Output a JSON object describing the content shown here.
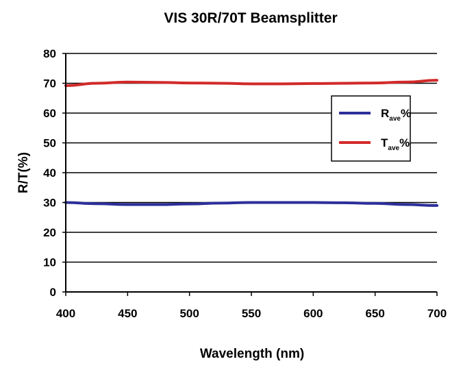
{
  "chart_data": {
    "type": "line",
    "title": "VIS 30R/70T Beamsplitter",
    "xlabel": "Wavelength (nm)",
    "ylabel": "R/T(%)",
    "xlim": [
      400,
      700
    ],
    "ylim": [
      0,
      80
    ],
    "x_ticks": [
      400,
      450,
      500,
      550,
      600,
      650,
      700
    ],
    "y_ticks": [
      0,
      10,
      20,
      30,
      40,
      50,
      60,
      70,
      80
    ],
    "grid": "horizontal",
    "legend_position": "right",
    "series": [
      {
        "name": "R",
        "subscript": "ave",
        "suffix": "%",
        "color": "#2e2f9a",
        "x": [
          400,
          425,
          450,
          475,
          500,
          525,
          550,
          575,
          600,
          625,
          650,
          675,
          700
        ],
        "y": [
          30.0,
          29.6,
          29.3,
          29.3,
          29.5,
          29.8,
          30.0,
          30.0,
          30.0,
          29.9,
          29.7,
          29.3,
          29.0
        ]
      },
      {
        "name": "T",
        "subscript": "ave",
        "suffix": "%",
        "color": "#d22a2a",
        "x": [
          400,
          425,
          450,
          475,
          500,
          525,
          550,
          575,
          600,
          625,
          650,
          675,
          700
        ],
        "y": [
          69.2,
          70.0,
          70.4,
          70.3,
          70.1,
          70.0,
          69.8,
          69.8,
          69.9,
          70.0,
          70.1,
          70.4,
          71.0
        ]
      }
    ]
  }
}
